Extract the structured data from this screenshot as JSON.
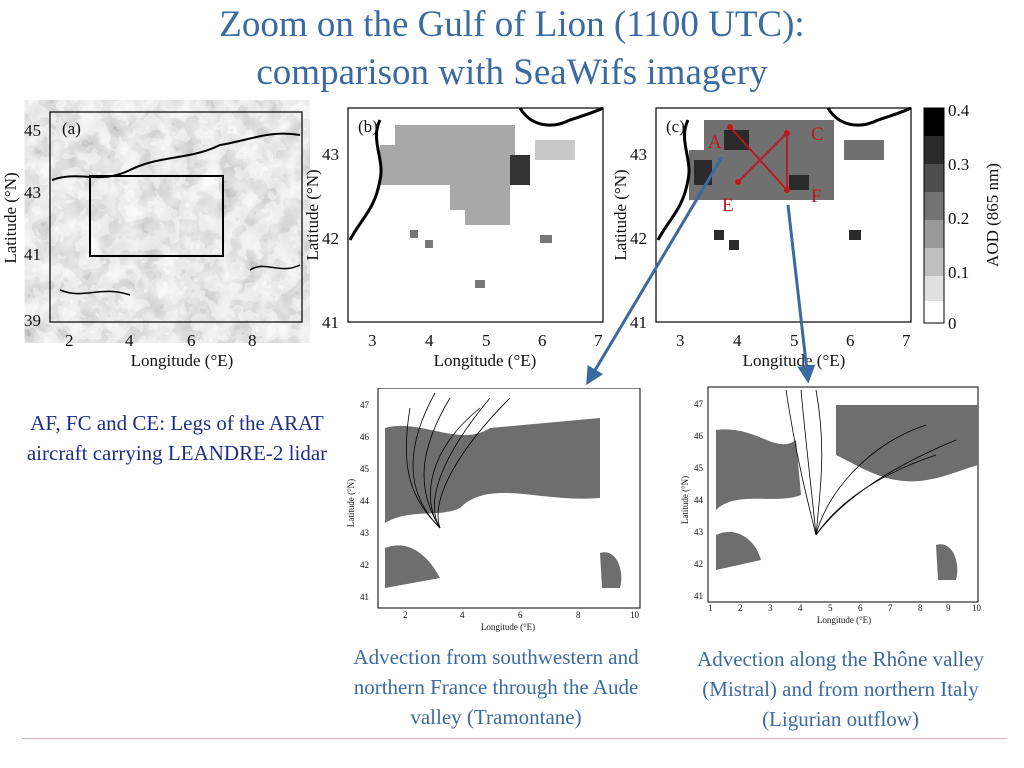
{
  "slide": {
    "title_line1": "Zoom on the Gulf of Lion (1100 UTC):",
    "title_line2": "comparison with SeaWifs imagery",
    "caption_left": "AF, FC and CE: Legs of the ARAT aircraft carrying LEANDRE-2 lidar",
    "caption_mid": "Advection from southwestern and northern France through the Aude valley (Tramontane)",
    "caption_right": "Advection along the Rhône valley (Mistral) and from northern Italy (Ligurian outflow)"
  },
  "panel_a": {
    "label": "(a)",
    "ylabel": "Latitude (°N)",
    "xlabel": "Longitude (°E)",
    "yticks": [
      "45",
      "43",
      "41",
      "39"
    ],
    "xticks": [
      "2",
      "4",
      "6",
      "8"
    ]
  },
  "panel_b": {
    "label": "(b)",
    "ylabel": "Latitude (°N)",
    "xlabel": "Longitude (°E)",
    "yticks": [
      "43",
      "42",
      "41"
    ],
    "xticks": [
      "3",
      "4",
      "5",
      "6",
      "7"
    ]
  },
  "panel_c": {
    "label": "(c)",
    "ylabel": "Latitude (°N)",
    "xlabel": "Longitude (°E)",
    "yticks": [
      "43",
      "42",
      "41"
    ],
    "xticks": [
      "3",
      "4",
      "5",
      "6",
      "7"
    ],
    "points": [
      "A",
      "C",
      "E",
      "F"
    ],
    "leg_color": "#c0161c"
  },
  "colorbar": {
    "label": "AOD (865 nm)",
    "ticks": [
      "0.4",
      "0.3",
      "0.2",
      "0.1",
      "0"
    ]
  },
  "traj_left": {
    "ylabel": "Latitude (°N)",
    "xlabel": "Longitude (°E)",
    "yticks": [
      "47",
      "46",
      "45",
      "44",
      "43",
      "42",
      "41"
    ],
    "xticks": [
      "2",
      "4",
      "6",
      "8",
      "10"
    ]
  },
  "traj_right": {
    "ylabel": "Latitude (°N)",
    "xlabel": "Longitude (°E)",
    "yticks": [
      "47",
      "46",
      "45",
      "44",
      "43",
      "42",
      "41"
    ],
    "xticks": [
      "1",
      "2",
      "3",
      "4",
      "5",
      "6",
      "7",
      "8",
      "9",
      "10"
    ]
  },
  "colors": {
    "title": "#3b6aa0",
    "caption_left": "#1f2e88",
    "arrow": "#3b6aa0",
    "legs": "#c0161c",
    "land_gray": "#6e6e6e"
  }
}
